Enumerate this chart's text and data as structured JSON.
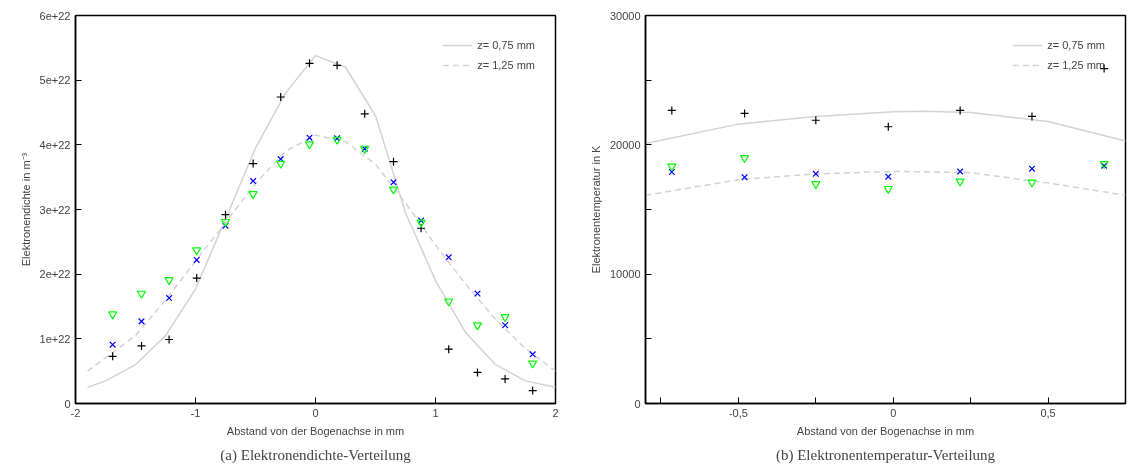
{
  "chart_data": [
    {
      "type": "scatter",
      "title": "(a) Elektronendichte-Verteilung",
      "xlabel": "Abstand von der Bogenachse in mm",
      "ylabel": "Elektronendichte in m⁻³",
      "xlim": [
        -2,
        2
      ],
      "xticks": [
        -2,
        -1,
        0,
        1,
        2
      ],
      "ylim": [
        0,
        6e+22
      ],
      "yticks": [
        0,
        {
          "value": 1e+22,
          "label": "1e+22"
        },
        {
          "value": 2e+22,
          "label": "2e+22"
        },
        {
          "value": 3e+22,
          "label": "3e+22"
        },
        {
          "value": 4e+22,
          "label": "4e+22"
        },
        {
          "value": 5e+22,
          "label": "5e+22"
        },
        {
          "value": 6e+22,
          "label": "6e+22"
        }
      ],
      "grid": false,
      "legend": "top right",
      "x": [
        -1.69,
        -1.45,
        -1.22,
        -0.99,
        -0.75,
        -0.52,
        -0.29,
        -0.05,
        0.18,
        0.41,
        0.65,
        0.88,
        1.11,
        1.35,
        1.58,
        1.81
      ],
      "series": [
        {
          "type": "line",
          "name": "z= 0,75 mm",
          "color": "#d3d3d3",
          "line_style": "solid",
          "x": [
            -1.9,
            -1.75,
            -1.5,
            -1.25,
            -1.0,
            -0.75,
            -0.5,
            -0.25,
            0,
            0.25,
            0.5,
            0.75,
            1.0,
            1.25,
            1.5,
            1.75,
            2.0
          ],
          "values": [
            2.5e+21,
            3.5e+21,
            6e+21,
            1.05e+22,
            1.77e+22,
            2.85e+22,
            3.95e+22,
            4.8e+22,
            5.38e+22,
            5.2e+22,
            4.45e+22,
            2.95e+22,
            1.9e+22,
            1.1e+22,
            6e+21,
            3.5e+21,
            2.5e+21
          ]
        },
        {
          "type": "line",
          "name": "z= 1,25 mm",
          "color": "#d3d3d3",
          "line_style": "dashed",
          "x": [
            -1.9,
            -1.5,
            -1.25,
            -1.0,
            -0.75,
            -0.5,
            -0.25,
            0,
            0.25,
            0.5,
            0.75,
            1.0,
            1.25,
            1.5,
            1.75,
            2.0
          ],
          "values": [
            5e+21,
            1.05e+22,
            1.6e+22,
            2.2e+22,
            2.8e+22,
            3.4e+22,
            3.9e+22,
            4.15e+22,
            4.05e+22,
            3.7e+22,
            3.1e+22,
            2.45e+22,
            1.85e+22,
            1.3e+22,
            8.5e+21,
            5e+21
          ]
        },
        {
          "color": "#000000",
          "marker": "cross",
          "values": [
            7.3e+21,
            8.9e+21,
            9.9e+21,
            1.94e+22,
            2.92e+22,
            3.71e+22,
            4.74e+22,
            5.26e+22,
            5.23e+22,
            4.48e+22,
            3.74e+22,
            2.71e+22,
            8.4e+21,
            4.8e+21,
            3.8e+21,
            2e+21
          ]
        },
        {
          "color": "#0000ff",
          "marker": "x",
          "values": [
            9.1e+21,
            1.27e+22,
            1.63e+22,
            2.22e+22,
            2.75e+22,
            3.44e+22,
            3.78e+22,
            4.11e+22,
            4.1e+22,
            3.94e+22,
            3.42e+22,
            2.83e+22,
            2.26e+22,
            1.7e+22,
            1.21e+22,
            7.6e+21
          ]
        },
        {
          "color": "#00ff00",
          "marker": "triangle",
          "values": [
            1.38e+22,
            1.7e+22,
            1.91e+22,
            2.37e+22,
            2.81e+22,
            3.24e+22,
            3.71e+22,
            4.01e+22,
            4.08e+22,
            3.94e+22,
            3.31e+22,
            2.8e+22,
            1.58e+22,
            1.21e+22,
            1.34e+22,
            6.2e+21
          ]
        }
      ]
    },
    {
      "type": "scatter",
      "title": "(b) Elektronentemperatur-Verteilung",
      "xlabel": "Abstand von der Bogenachse in mm",
      "ylabel": "Elektronentemperatur in K",
      "xlim": [
        -0.8,
        0.75
      ],
      "xticks": [
        {
          "value": -0.75,
          "label": null
        },
        {
          "value": -0.5,
          "label": "-0,5"
        },
        {
          "value": -0.25,
          "label": null
        },
        0,
        {
          "value": 0.25,
          "label": null
        },
        {
          "value": 0.5,
          "label": "0,5"
        },
        {
          "value": 0.75,
          "label": null
        }
      ],
      "ylim": [
        0,
        30000
      ],
      "yticks": [
        0,
        {
          "value": 5000,
          "label": null
        },
        10000,
        {
          "value": 15000,
          "label": null
        },
        20000,
        {
          "value": 25000,
          "label": null
        },
        30000
      ],
      "grid": false,
      "legend": "top right",
      "x": [
        -0.715,
        -0.48,
        -0.25,
        -0.016,
        0.216,
        0.448,
        0.681
      ],
      "series": [
        {
          "type": "line",
          "name": "z= 0,75 mm",
          "color": "#d3d3d3",
          "line_style": "solid",
          "x": [
            -0.8,
            -0.5,
            -0.25,
            0,
            0.1,
            0.25,
            0.5,
            0.75
          ],
          "values": [
            20100,
            21600,
            22200,
            22550,
            22600,
            22500,
            21800,
            20300
          ]
        },
        {
          "type": "line",
          "name": "z= 1,25 mm",
          "color": "#d3d3d3",
          "line_style": "dashed",
          "x": [
            -0.8,
            -0.5,
            -0.25,
            0,
            0.25,
            0.5,
            0.75
          ],
          "values": [
            16100,
            17300,
            17750,
            17950,
            17850,
            17050,
            16100
          ]
        },
        {
          "color": "#000000",
          "marker": "cross",
          "values": [
            22660,
            22430,
            21900,
            21400,
            22660,
            22200,
            25900
          ]
        },
        {
          "color": "#0000ff",
          "marker": "x",
          "values": [
            17900,
            17500,
            17760,
            17540,
            17930,
            18160,
            18390
          ]
        },
        {
          "color": "#00ff00",
          "marker": "triangle",
          "values": [
            18330,
            18990,
            16970,
            16600,
            17170,
            17100,
            18530
          ]
        }
      ]
    }
  ]
}
